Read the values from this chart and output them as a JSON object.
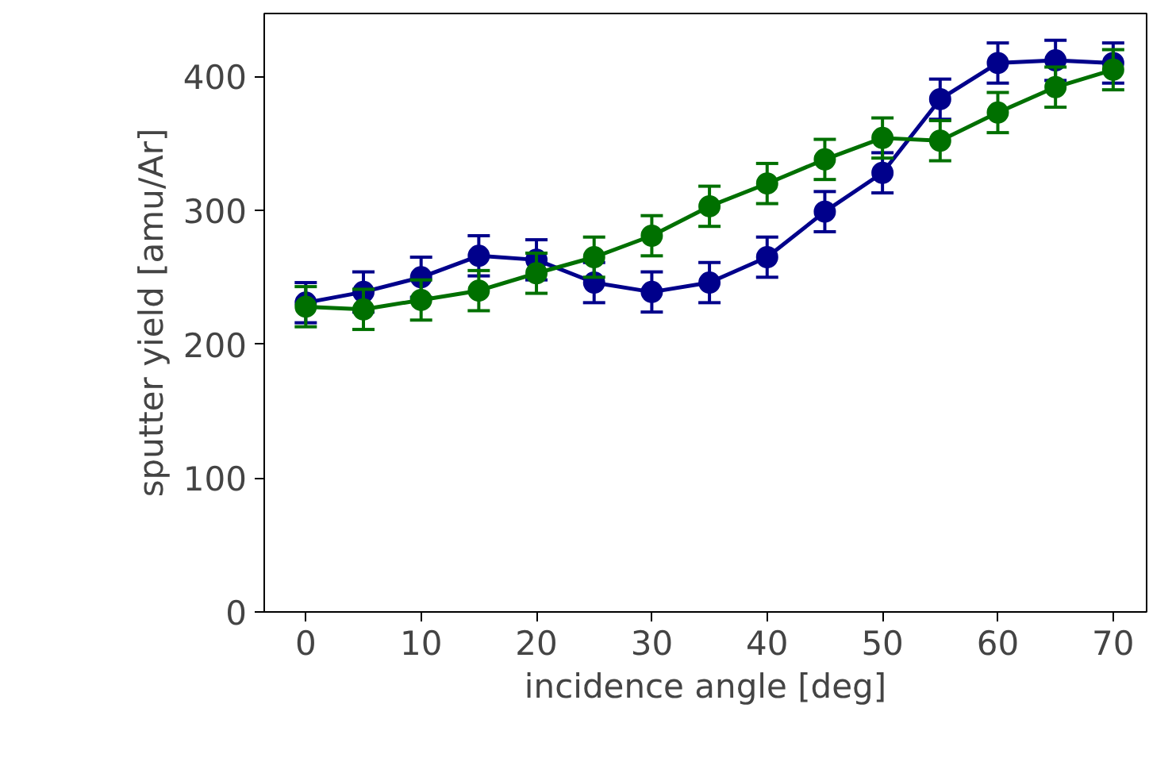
{
  "chart_data": {
    "type": "line",
    "xlabel": "incidence angle [deg]",
    "ylabel": "sputter yield [amu/Ar]",
    "x": [
      0,
      5,
      10,
      15,
      20,
      25,
      30,
      35,
      40,
      45,
      50,
      55,
      60,
      65,
      70
    ],
    "series": [
      {
        "color": "#00008b",
        "values": [
          231,
          239,
          250,
          266,
          263,
          246,
          239,
          246,
          265,
          299,
          328,
          383,
          410,
          412,
          410
        ],
        "errors": [
          15,
          15,
          15,
          15,
          15,
          15,
          15,
          15,
          15,
          15,
          15,
          15,
          15,
          15,
          15
        ]
      },
      {
        "color": "#007000",
        "values": [
          228,
          226,
          233,
          240,
          253,
          265,
          281,
          303,
          320,
          338,
          354,
          352,
          373,
          392,
          405
        ],
        "errors": [
          15,
          15,
          15,
          15,
          15,
          15,
          15,
          15,
          15,
          15,
          15,
          15,
          15,
          15,
          15
        ]
      }
    ],
    "xlim": [
      -3.6,
      72.9
    ],
    "ylim": [
      0,
      447
    ],
    "xticks": [
      0,
      10,
      20,
      30,
      40,
      50,
      60,
      70
    ],
    "yticks": [
      0,
      100,
      200,
      300,
      400
    ],
    "marker": "circle",
    "line_style": "solid"
  }
}
